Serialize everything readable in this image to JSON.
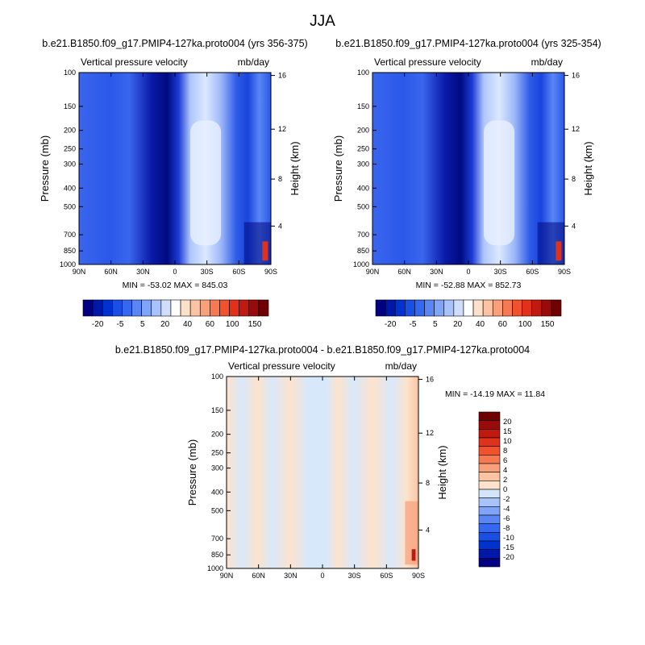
{
  "page": {
    "title": "JJA"
  },
  "colors": {
    "main_scale": [
      "#000080",
      "#0018a8",
      "#0032d2",
      "#1a4fe6",
      "#3468f0",
      "#5a86f5",
      "#7fa4f8",
      "#a8c2fb",
      "#d0defc",
      "#ffffff",
      "#fde0c8",
      "#fbc3a2",
      "#f8a07a",
      "#f57a52",
      "#f0522e",
      "#e1311a",
      "#c01a10",
      "#970c0a",
      "#700000"
    ],
    "diff_scale": [
      "#000080",
      "#0018a8",
      "#0032d2",
      "#1a4fe6",
      "#3468f0",
      "#5a86f5",
      "#7fa4f8",
      "#a8c2fb",
      "#d4e5fb",
      "#fde3cc",
      "#fbc3a2",
      "#f8a07a",
      "#f57a52",
      "#f0522e",
      "#e1311a",
      "#c01a10",
      "#970c0a",
      "#700000"
    ]
  },
  "chart_data": [
    {
      "type": "heatmap",
      "title": "b.e21.B1850.f09_g17.PMIP4-127ka.proto004 (yrs 356-375)",
      "left_label": "Vertical pressure velocity",
      "units": "mb/day",
      "xlabel": "",
      "ylabel": "Pressure (mb)",
      "ylabel_right": "Height (km)",
      "x_ticks": [
        "90N",
        "60N",
        "30N",
        "0",
        "30S",
        "60S",
        "90S"
      ],
      "y_ticks": [
        "100",
        "150",
        "200",
        "250",
        "300",
        "400",
        "500",
        "700",
        "850",
        "1000"
      ],
      "y_ticks_right": [
        "16",
        "12",
        "8",
        "4"
      ],
      "stats": "MIN = -53.02   MAX = 845.03",
      "colorbar_labels": [
        "-20",
        "-5",
        "5",
        "20",
        "40",
        "60",
        "100",
        "150"
      ]
    },
    {
      "type": "heatmap",
      "title": "b.e21.B1850.f09_g17.PMIP4-127ka.proto004 (yrs 325-354)",
      "left_label": "Vertical pressure velocity",
      "units": "mb/day",
      "xlabel": "",
      "ylabel": "Pressure (mb)",
      "ylabel_right": "Height (km)",
      "x_ticks": [
        "90N",
        "60N",
        "30N",
        "0",
        "30S",
        "60S",
        "90S"
      ],
      "y_ticks": [
        "100",
        "150",
        "200",
        "250",
        "300",
        "400",
        "500",
        "700",
        "850",
        "1000"
      ],
      "y_ticks_right": [
        "16",
        "12",
        "8",
        "4"
      ],
      "stats": "MIN = -52.88   MAX = 852.73",
      "colorbar_labels": [
        "-20",
        "-5",
        "5",
        "20",
        "40",
        "60",
        "100",
        "150"
      ]
    },
    {
      "type": "heatmap",
      "title": "b.e21.B1850.f09_g17.PMIP4-127ka.proto004 - b.e21.B1850.f09_g17.PMIP4-127ka.proto004",
      "left_label": "Vertical pressure velocity",
      "units": "mb/day",
      "xlabel": "",
      "ylabel": "Pressure (mb)",
      "ylabel_right": "Height (km)",
      "x_ticks": [
        "90N",
        "60N",
        "30N",
        "0",
        "30S",
        "60S",
        "90S"
      ],
      "y_ticks": [
        "100",
        "150",
        "200",
        "250",
        "300",
        "400",
        "500",
        "700",
        "850",
        "1000"
      ],
      "y_ticks_right": [
        "16",
        "12",
        "8",
        "4"
      ],
      "stats": "MIN = -14.19   MAX =  11.84",
      "colorbar_labels": [
        "20",
        "15",
        "10",
        "8",
        "6",
        "4",
        "2",
        "0",
        "-2",
        "-4",
        "-6",
        "-8",
        "-10",
        "-15",
        "-20"
      ]
    }
  ]
}
